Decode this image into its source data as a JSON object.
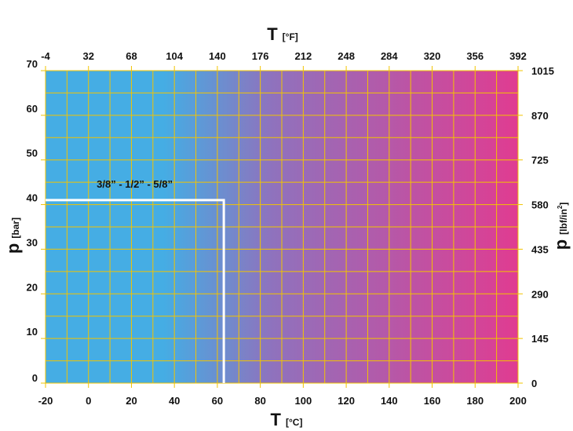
{
  "chart_data": {
    "type": "area",
    "x_celsius_ticks": [
      "-20",
      "0",
      "20",
      "40",
      "60",
      "80",
      "100",
      "120",
      "140",
      "160",
      "180",
      "200"
    ],
    "x_fahrenheit_ticks": [
      "-4",
      "32",
      "68",
      "104",
      "140",
      "176",
      "212",
      "248",
      "284",
      "320",
      "356",
      "392"
    ],
    "y_bar_ticks": [
      "0",
      "10",
      "20",
      "30",
      "40",
      "50",
      "60",
      "70"
    ],
    "y_psi_ticks": [
      "0",
      "145",
      "290",
      "435",
      "580",
      "725",
      "870",
      "1015"
    ],
    "xlim": [
      -20,
      200
    ],
    "ylim": [
      0,
      70
    ],
    "x_minor_step": 10,
    "y_minor_step": 5,
    "grid": true,
    "region": {
      "label": "3/8” - 1/2” - 5/8”",
      "x": [
        -20,
        63
      ],
      "y": [
        0,
        41
      ]
    },
    "gradient_colors": [
      "#45ade4",
      "#45ade4",
      "#8f72bd",
      "#e03c91"
    ],
    "grid_color": "#f2c400",
    "region_color": "#ffffff"
  },
  "labels": {
    "bottom_title": "T",
    "bottom_unit": "[°C]",
    "top_title": "T",
    "top_unit": "[°F]",
    "left_title": "p",
    "left_unit": "[bar]",
    "right_title": "p",
    "right_unit_main": "[lbf/in",
    "right_unit_sup": "2",
    "right_unit_close": "]"
  }
}
